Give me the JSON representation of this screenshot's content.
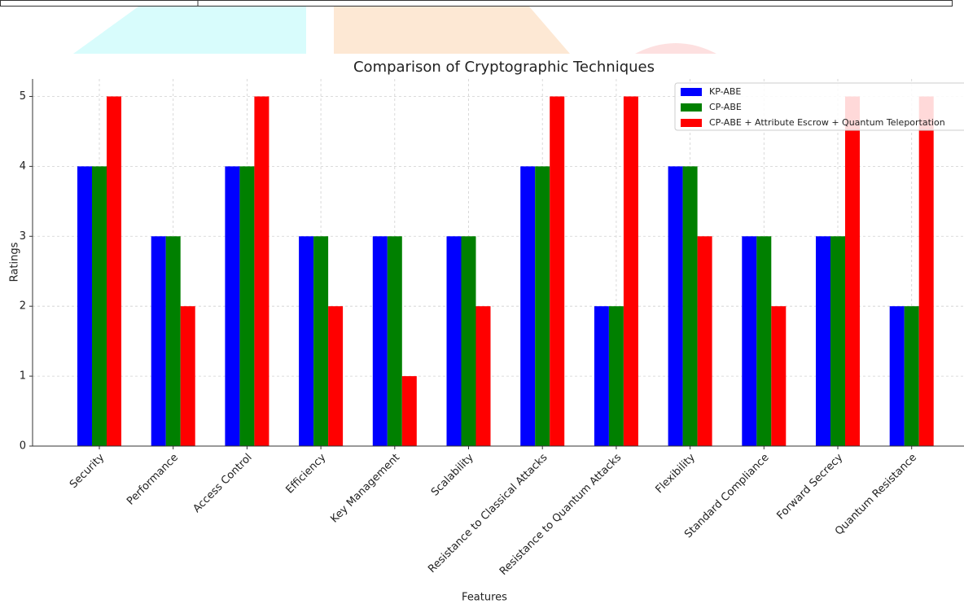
{
  "chart_data": {
    "type": "bar",
    "title": "Comparison of Cryptographic Techniques",
    "x_label": "Features",
    "y_label": "Ratings",
    "categories": [
      "Security",
      "Performance",
      "Access Control",
      "Efficiency",
      "Key Management",
      "Scalability",
      "Resistance to Classical Attacks",
      "Resistance to Quantum Attacks",
      "Flexibility",
      "Standard Compliance",
      "Forward Secrecy",
      "Quantum Resistance"
    ],
    "series": [
      {
        "name": "KP-ABE",
        "color": "#0000ff",
        "values": [
          4,
          3,
          4,
          3,
          3,
          3,
          4,
          2,
          4,
          3,
          3,
          2
        ]
      },
      {
        "name": "CP-ABE",
        "color": "#008000",
        "values": [
          4,
          3,
          4,
          3,
          3,
          3,
          4,
          2,
          4,
          3,
          3,
          2
        ]
      },
      {
        "name": "CP-ABE + Attribute Escrow + Quantum Teleportation",
        "color": "#ff0000",
        "values": [
          5,
          2,
          5,
          2,
          1,
          2,
          5,
          5,
          3,
          2,
          5,
          5
        ]
      }
    ],
    "ylim": [
      0,
      5.25
    ],
    "yticks": [
      0,
      1,
      2,
      3,
      4,
      5
    ],
    "grid": true,
    "legend": "upper right"
  }
}
